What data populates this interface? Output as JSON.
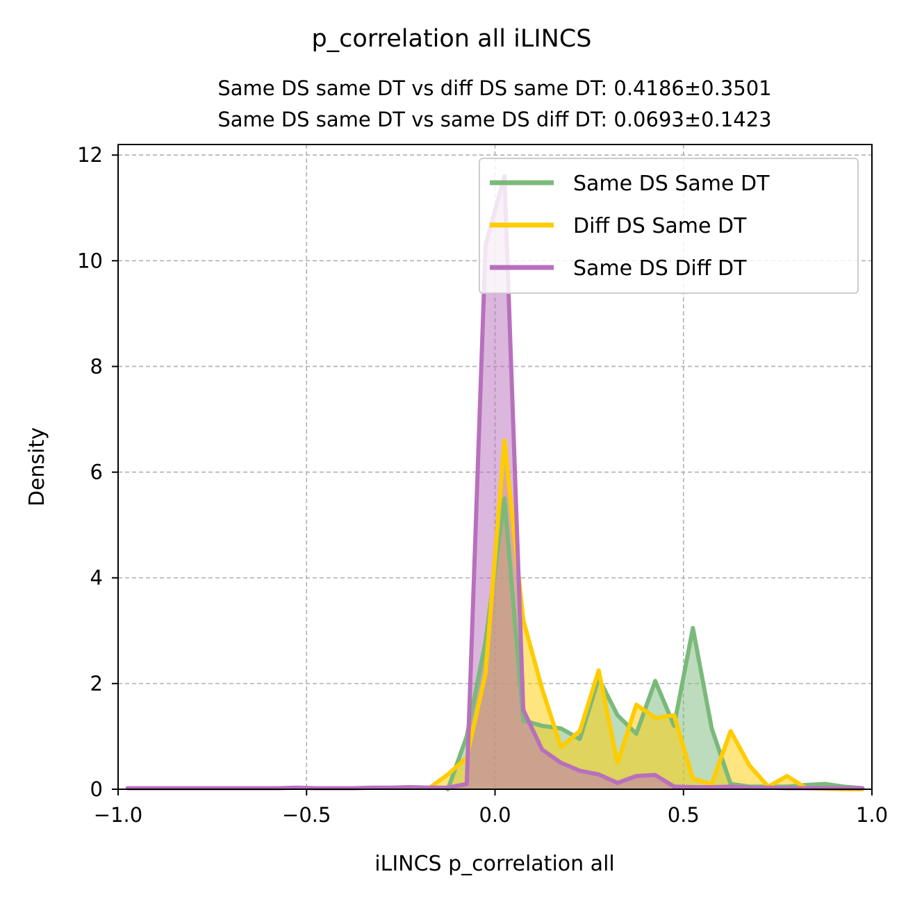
{
  "chart_data": {
    "type": "line",
    "title": "p_correlation all iLINCS",
    "subtitle_lines": [
      "Same DS same DT vs diff DS same DT: 0.4186±0.3501",
      "Same DS same DT vs same DS diff DT: 0.0693±0.1423"
    ],
    "xlabel": "iLINCS p_correlation all",
    "ylabel": "Density",
    "xlim": [
      -1.0,
      1.0
    ],
    "ylim": [
      0,
      12.2
    ],
    "xticks": [
      -1.0,
      -0.5,
      0.0,
      0.5,
      1.0
    ],
    "xtick_labels": [
      "−1.0",
      "−0.5",
      "0.0",
      "0.5",
      "1.0"
    ],
    "yticks": [
      0,
      2,
      4,
      6,
      8,
      10,
      12
    ],
    "ytick_labels": [
      "0",
      "2",
      "4",
      "6",
      "8",
      "10",
      "12"
    ],
    "grid": true,
    "legend_position": "top-right",
    "series": [
      {
        "name": "Same DS Same DT",
        "color": "#7bb97b",
        "fill_opacity": 0.5,
        "points": [
          [
            -0.125,
            0
          ],
          [
            -0.075,
            1.0
          ],
          [
            -0.025,
            2.8
          ],
          [
            0.025,
            5.5
          ],
          [
            0.075,
            1.3
          ],
          [
            0.125,
            1.2
          ],
          [
            0.175,
            1.15
          ],
          [
            0.225,
            0.95
          ],
          [
            0.275,
            2.1
          ],
          [
            0.325,
            1.4
          ],
          [
            0.375,
            1.05
          ],
          [
            0.425,
            2.05
          ],
          [
            0.475,
            1.2
          ],
          [
            0.525,
            3.05
          ],
          [
            0.575,
            1.15
          ],
          [
            0.625,
            0.1
          ],
          [
            0.675,
            0.05
          ],
          [
            0.725,
            0.05
          ],
          [
            0.775,
            0.05
          ],
          [
            0.825,
            0.08
          ],
          [
            0.875,
            0.1
          ],
          [
            0.925,
            0.05
          ],
          [
            0.975,
            0.02
          ]
        ]
      },
      {
        "name": "Diff DS Same DT",
        "color": "#ffcc00",
        "fill_opacity": 0.5,
        "points": [
          [
            -0.175,
            0.02
          ],
          [
            -0.125,
            0.28
          ],
          [
            -0.075,
            0.6
          ],
          [
            -0.025,
            2.2
          ],
          [
            0.025,
            6.6
          ],
          [
            0.075,
            3.2
          ],
          [
            0.125,
            1.9
          ],
          [
            0.175,
            0.8
          ],
          [
            0.225,
            1.1
          ],
          [
            0.275,
            2.25
          ],
          [
            0.325,
            0.5
          ],
          [
            0.375,
            1.6
          ],
          [
            0.425,
            1.35
          ],
          [
            0.475,
            1.4
          ],
          [
            0.525,
            0.2
          ],
          [
            0.575,
            0.1
          ],
          [
            0.625,
            1.1
          ],
          [
            0.675,
            0.45
          ],
          [
            0.725,
            0.05
          ],
          [
            0.775,
            0.25
          ],
          [
            0.825,
            0.02
          ],
          [
            0.875,
            0.01
          ],
          [
            0.925,
            0.0
          ],
          [
            0.975,
            0.0
          ]
        ]
      },
      {
        "name": "Same DS Diff DT",
        "color": "#b870bd",
        "fill_opacity": 0.5,
        "points": [
          [
            -0.975,
            0.02
          ],
          [
            -0.925,
            0.02
          ],
          [
            -0.875,
            0.02
          ],
          [
            -0.825,
            0.02
          ],
          [
            -0.775,
            0.02
          ],
          [
            -0.725,
            0.02
          ],
          [
            -0.675,
            0.02
          ],
          [
            -0.625,
            0.02
          ],
          [
            -0.575,
            0.02
          ],
          [
            -0.525,
            0.03
          ],
          [
            -0.475,
            0.02
          ],
          [
            -0.425,
            0.02
          ],
          [
            -0.375,
            0.02
          ],
          [
            -0.325,
            0.03
          ],
          [
            -0.275,
            0.03
          ],
          [
            -0.225,
            0.04
          ],
          [
            -0.175,
            0.03
          ],
          [
            -0.125,
            0.03
          ],
          [
            -0.075,
            0.1
          ],
          [
            -0.025,
            10.3
          ],
          [
            0.025,
            11.6
          ],
          [
            0.075,
            1.5
          ],
          [
            0.125,
            0.75
          ],
          [
            0.175,
            0.5
          ],
          [
            0.225,
            0.35
          ],
          [
            0.275,
            0.28
          ],
          [
            0.325,
            0.12
          ],
          [
            0.375,
            0.25
          ],
          [
            0.425,
            0.27
          ],
          [
            0.475,
            0.05
          ],
          [
            0.525,
            0.04
          ],
          [
            0.575,
            0.04
          ],
          [
            0.625,
            0.05
          ],
          [
            0.675,
            0.03
          ],
          [
            0.725,
            0.03
          ],
          [
            0.775,
            0.02
          ],
          [
            0.825,
            0.02
          ],
          [
            0.875,
            0.02
          ],
          [
            0.925,
            0.02
          ],
          [
            0.975,
            0.02
          ]
        ]
      }
    ]
  }
}
